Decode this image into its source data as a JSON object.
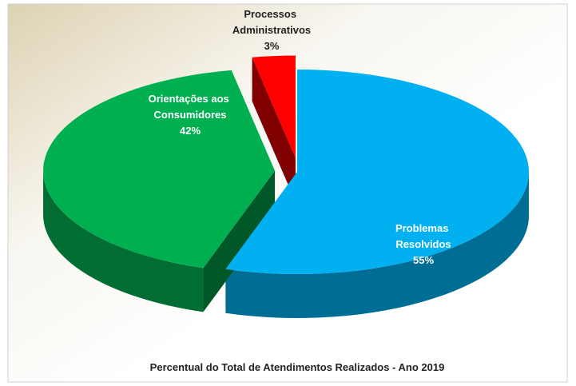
{
  "chart_data": {
    "type": "pie3d",
    "title": "Percentual do Total de Atendimentos Realizados - Ano 2019",
    "categories": [
      "Problemas Resolvidos",
      "Orientações aos Consumidores",
      "Processos Administrativos"
    ],
    "values": [
      55,
      42,
      3
    ],
    "value_labels": [
      "55%",
      "42%",
      "3%"
    ],
    "colors": [
      "#00b0f0",
      "#00b050",
      "#ff0000"
    ]
  }
}
